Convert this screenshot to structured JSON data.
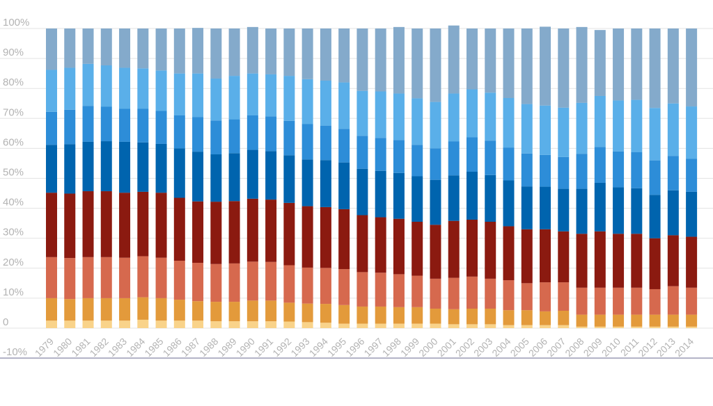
{
  "chart_data": {
    "type": "bar",
    "stacked": true,
    "percent": true,
    "title": "",
    "xlabel": "",
    "ylabel": "",
    "ylim": [
      -10,
      100
    ],
    "y_ticks": [
      "100%",
      "90%",
      "80%",
      "70%",
      "60%",
      "50%",
      "40%",
      "30%",
      "20%",
      "10%",
      "0",
      "-10%"
    ],
    "grid": true,
    "legend": "none",
    "categories": [
      "1979",
      "1980",
      "1981",
      "1982",
      "1983",
      "1984",
      "1985",
      "1986",
      "1987",
      "1988",
      "1989",
      "1990",
      "1991",
      "1992",
      "1993",
      "1994",
      "1995",
      "1996",
      "1997",
      "1998",
      "1999",
      "2000",
      "2001",
      "2002",
      "2003",
      "2004",
      "2005",
      "2006",
      "2007",
      "2008",
      "2009",
      "2010",
      "2011",
      "2012",
      "2013",
      "2014"
    ],
    "series": [
      {
        "color": "#f9d38a",
        "values": [
          2.5,
          2.5,
          2.5,
          2.5,
          2.5,
          2.8,
          2.5,
          2.5,
          2.5,
          2.3,
          2.3,
          2.3,
          2.3,
          2.2,
          2,
          1.8,
          1.5,
          1.5,
          1.5,
          1.5,
          1.5,
          1.5,
          1.3,
          1.3,
          1.3,
          1,
          1,
          1,
          1,
          0.5,
          0.5,
          0.5,
          0.5,
          0.5,
          0.5,
          0.5
        ]
      },
      {
        "color": "#e39a3b",
        "values": [
          7.5,
          7.2,
          7.5,
          7.5,
          7.5,
          7.5,
          7.5,
          7,
          6.5,
          6.5,
          6.5,
          6.9,
          6.9,
          6.3,
          6.2,
          6.3,
          6.2,
          5.7,
          5.7,
          5.5,
          5.5,
          5,
          5,
          5.2,
          5.2,
          5,
          5,
          4.6,
          4.8,
          4,
          4,
          4,
          4,
          4,
          4,
          4
        ]
      },
      {
        "color": "#d6694e",
        "values": [
          13.7,
          13.7,
          13.7,
          13.7,
          13.5,
          13.7,
          13.5,
          13,
          12.8,
          12.6,
          12.8,
          13,
          12.9,
          12.5,
          12,
          12,
          12,
          11.5,
          11.3,
          11,
          10.5,
          10,
          10.5,
          10.7,
          10,
          10,
          9,
          9.7,
          9.5,
          9,
          9,
          9,
          9,
          8.5,
          9.5,
          9
        ]
      },
      {
        "color": "#8b1a10",
        "values": [
          21.5,
          21.5,
          22,
          22,
          21.7,
          21.5,
          21.7,
          21,
          20.5,
          20.8,
          20.8,
          21,
          20.8,
          20.8,
          20.5,
          20.3,
          20,
          19,
          18.5,
          18.5,
          18,
          18,
          19,
          19,
          19,
          18,
          18,
          17.7,
          17,
          18,
          18.8,
          18,
          18,
          17,
          17,
          17
        ]
      },
      {
        "color": "#0064ae",
        "values": [
          16,
          16.5,
          16.5,
          16.7,
          17,
          16.5,
          16.3,
          16.5,
          16.6,
          15.8,
          16,
          16.3,
          16.2,
          15.9,
          15.6,
          15.7,
          15.6,
          15.5,
          15.5,
          15.3,
          15.2,
          15,
          15.2,
          16,
          15.6,
          15.3,
          14.3,
          14.2,
          14.2,
          15,
          16.2,
          15.5,
          15.2,
          14.5,
          15,
          15
        ]
      },
      {
        "color": "#2d8dd8",
        "values": [
          11,
          11.5,
          12,
          11.5,
          11,
          11.2,
          11,
          11,
          11.6,
          11.3,
          11.3,
          11.5,
          11.6,
          11.5,
          11.8,
          11.5,
          11.2,
          11,
          11,
          11,
          10.5,
          10.5,
          11.3,
          11.5,
          11.5,
          11,
          11,
          10.6,
          10.6,
          11.7,
          12,
          12,
          12,
          11.5,
          11.5,
          11
        ]
      },
      {
        "color": "#5aafe9",
        "values": [
          14,
          14,
          14,
          13.8,
          13.7,
          13.5,
          13.5,
          14,
          14.5,
          14,
          14.5,
          14,
          14,
          15,
          15,
          15,
          15.5,
          15,
          15.5,
          15.5,
          15.5,
          15.5,
          16,
          16,
          16,
          16.5,
          16.5,
          16.5,
          16.5,
          17,
          17,
          17,
          17.5,
          17.5,
          17.5,
          17.5
        ]
      },
      {
        "color": "#84aacb",
        "values": [
          13.8,
          13.1,
          11.8,
          12.3,
          13.1,
          13.3,
          14,
          15,
          15.2,
          16.7,
          15.8,
          15.5,
          15.3,
          15.8,
          16.9,
          17.4,
          18,
          20.8,
          21,
          22.2,
          23.3,
          24.5,
          22.7,
          20.3,
          21.4,
          23.2,
          25.2,
          26.3,
          26.4,
          25.3,
          22,
          24,
          23.8,
          26.5,
          25,
          26
        ]
      }
    ]
  }
}
